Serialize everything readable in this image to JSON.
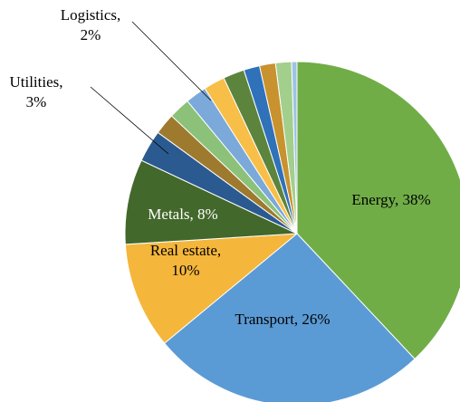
{
  "chart_data": {
    "type": "pie",
    "values": [
      38,
      26,
      10,
      8,
      3,
      2,
      2,
      2,
      2,
      2,
      1.5,
      1.5,
      1.5,
      0.5
    ],
    "value_labels": [
      "Energy, 38%",
      "Transport, 26%",
      "Real estate,\n10%",
      "Metals, 8%",
      "Utilities,\n3%",
      null,
      null,
      "Logistics,\n2%",
      null,
      null,
      null,
      null,
      null,
      null
    ],
    "colors": [
      "#70ad47",
      "#5b9bd5",
      "#f5b63c",
      "#43682b",
      "#2b5a91",
      "#9e7a2e",
      "#8cc17a",
      "#7aa9da",
      "#f7bf48",
      "#5d843d",
      "#2f72ba",
      "#c8922f",
      "#a3cf8c",
      "#9dc3e6"
    ]
  }
}
